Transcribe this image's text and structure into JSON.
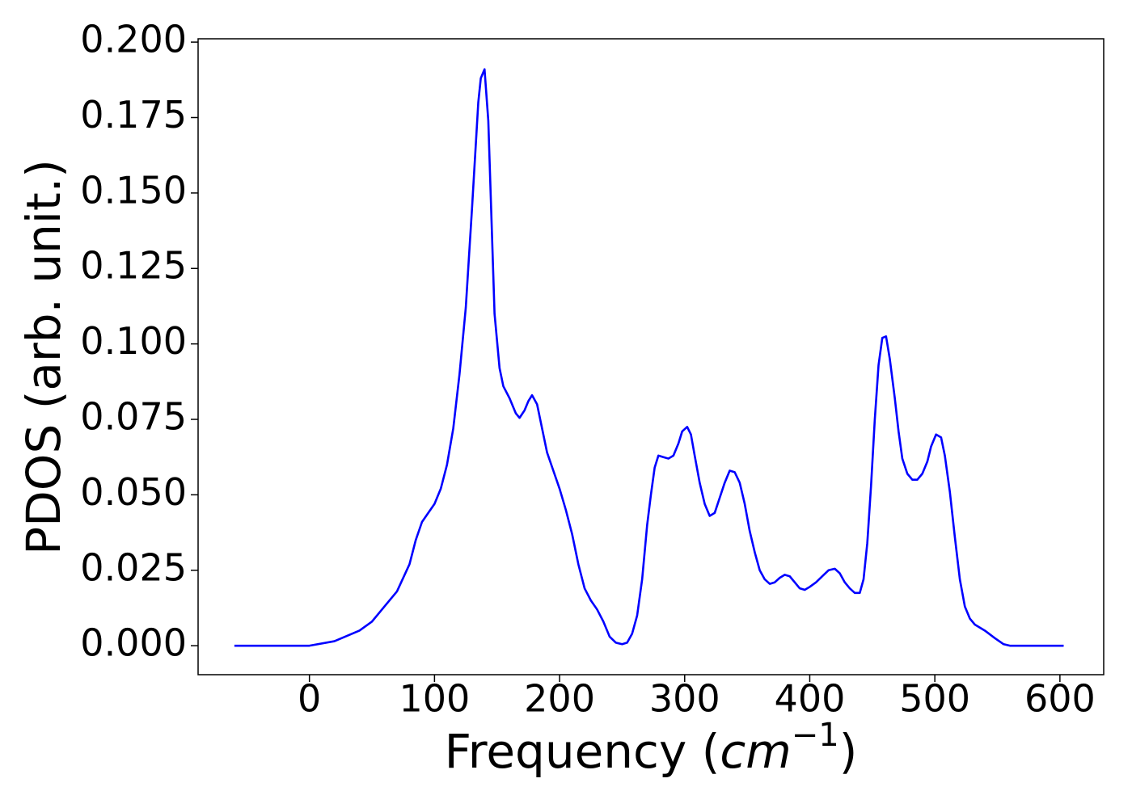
{
  "chart_data": {
    "type": "line",
    "x_label_parts": [
      "Frequency (",
      "cm",
      "−1",
      ")"
    ],
    "y_label": "PDOS (arb. unit.)",
    "x": [
      -60,
      0,
      20,
      40,
      50,
      60,
      70,
      80,
      85,
      90,
      100,
      105,
      110,
      115,
      120,
      125,
      130,
      135,
      137,
      140,
      143,
      148,
      152,
      155,
      160,
      165,
      168,
      172,
      175,
      178,
      182,
      186,
      190,
      195,
      200,
      205,
      210,
      215,
      220,
      225,
      230,
      235,
      240,
      245,
      250,
      254,
      258,
      262,
      266,
      270,
      273,
      276,
      279,
      283,
      287,
      291,
      295,
      298,
      302,
      305,
      308,
      312,
      316,
      320,
      324,
      328,
      332,
      336,
      340,
      344,
      348,
      352,
      356,
      360,
      364,
      368,
      372,
      376,
      380,
      384,
      388,
      392,
      396,
      400,
      405,
      410,
      415,
      420,
      424,
      428,
      432,
      436,
      440,
      443,
      446,
      449,
      452,
      455,
      458,
      461,
      464,
      468,
      471,
      474,
      478,
      482,
      486,
      490,
      494,
      497,
      501,
      505,
      508,
      512,
      516,
      520,
      524,
      528,
      532,
      540,
      548,
      555,
      560,
      580,
      603
    ],
    "series": [
      {
        "color": "#0000ff",
        "values": [
          0,
          0,
          0.0015,
          0.005,
          0.008,
          0.013,
          0.018,
          0.027,
          0.035,
          0.041,
          0.047,
          0.052,
          0.06,
          0.072,
          0.09,
          0.112,
          0.145,
          0.18,
          0.188,
          0.191,
          0.174,
          0.11,
          0.092,
          0.086,
          0.082,
          0.077,
          0.0755,
          0.078,
          0.081,
          0.083,
          0.08,
          0.072,
          0.064,
          0.058,
          0.052,
          0.045,
          0.037,
          0.027,
          0.019,
          0.015,
          0.012,
          0.008,
          0.003,
          0.001,
          0.0005,
          0.001,
          0.004,
          0.01,
          0.022,
          0.04,
          0.05,
          0.059,
          0.063,
          0.0625,
          0.062,
          0.063,
          0.067,
          0.071,
          0.0725,
          0.07,
          0.063,
          0.054,
          0.047,
          0.043,
          0.044,
          0.049,
          0.054,
          0.058,
          0.0575,
          0.054,
          0.047,
          0.038,
          0.031,
          0.025,
          0.022,
          0.0205,
          0.021,
          0.0225,
          0.0235,
          0.023,
          0.021,
          0.019,
          0.0185,
          0.0195,
          0.021,
          0.023,
          0.025,
          0.0255,
          0.024,
          0.021,
          0.019,
          0.0175,
          0.0175,
          0.022,
          0.034,
          0.053,
          0.075,
          0.093,
          0.102,
          0.1025,
          0.095,
          0.082,
          0.071,
          0.062,
          0.057,
          0.055,
          0.055,
          0.057,
          0.061,
          0.066,
          0.07,
          0.069,
          0.063,
          0.051,
          0.036,
          0.022,
          0.013,
          0.009,
          0.007,
          0.005,
          0.0025,
          0.0005,
          0,
          0,
          0
        ]
      }
    ],
    "xlim": [
      -89,
      635
    ],
    "ylim": [
      -0.0096,
      0.2011
    ],
    "xticks": [
      0,
      100,
      200,
      300,
      400,
      500,
      600
    ],
    "yticks": [
      {
        "value": 0,
        "label": "0.000"
      },
      {
        "value": 0.025,
        "label": "0.025"
      },
      {
        "value": 0.05,
        "label": "0.050"
      },
      {
        "value": 0.075,
        "label": "0.075"
      },
      {
        "value": 0.1,
        "label": "0.100"
      },
      {
        "value": 0.125,
        "label": "0.125"
      },
      {
        "value": 0.15,
        "label": "0.150"
      },
      {
        "value": 0.175,
        "label": "0.175"
      },
      {
        "value": 0.2,
        "label": "0.200"
      }
    ]
  }
}
